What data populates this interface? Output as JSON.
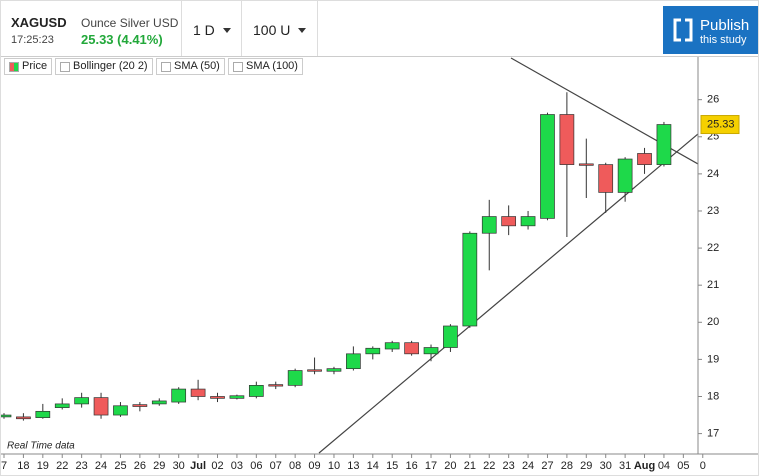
{
  "toolbar": {
    "symbol": "XAGUSD",
    "description": "Ounce Silver USD",
    "time": "17:25:23",
    "price_change": "25.33 (4.41%)",
    "interval": "1 D",
    "range": "100 U",
    "publish": "Publish",
    "publish_sub": "this study"
  },
  "footer": "Real Time data",
  "chart_data": {
    "type": "candlestick",
    "legend": [
      "Price",
      "Bollinger (20 2)",
      "SMA (50)",
      "SMA (100)"
    ],
    "up_color": "#1ed94a",
    "down_color": "#ef5b5b",
    "categories": [
      "7",
      "18",
      "19",
      "22",
      "23",
      "24",
      "25",
      "26",
      "29",
      "30",
      "Jul",
      "02",
      "03",
      "06",
      "07",
      "08",
      "09",
      "10",
      "13",
      "14",
      "15",
      "16",
      "17",
      "20",
      "21",
      "22",
      "23",
      "24",
      "27",
      "28",
      "29",
      "30",
      "31",
      "Aug",
      "04",
      "05",
      "0"
    ],
    "open": [
      17.45,
      17.45,
      17.43,
      17.7,
      17.8,
      17.97,
      17.5,
      17.78,
      17.8,
      17.85,
      18.2,
      18.0,
      17.95,
      18.0,
      18.32,
      18.3,
      18.72,
      18.68,
      18.75,
      19.15,
      19.28,
      19.45,
      19.15,
      19.32,
      19.9,
      22.4,
      22.85,
      22.6,
      22.8,
      25.6,
      24.27,
      24.25,
      23.5,
      24.55,
      24.25,
      null,
      null
    ],
    "high": [
      17.55,
      17.55,
      17.8,
      17.95,
      18.1,
      18.1,
      17.85,
      17.85,
      17.95,
      18.25,
      18.45,
      18.1,
      18.05,
      18.4,
      18.4,
      18.75,
      19.05,
      18.8,
      19.35,
      19.35,
      19.5,
      19.5,
      19.4,
      19.95,
      22.45,
      23.3,
      23.15,
      23.0,
      25.65,
      26.2,
      24.95,
      24.3,
      24.45,
      24.7,
      25.4,
      null,
      null
    ],
    "low": [
      17.4,
      17.35,
      17.4,
      17.65,
      17.7,
      17.4,
      17.45,
      17.6,
      17.75,
      17.8,
      17.9,
      17.85,
      17.92,
      17.95,
      18.2,
      18.25,
      18.6,
      18.6,
      18.7,
      19.0,
      19.2,
      19.1,
      18.95,
      19.2,
      19.85,
      21.4,
      22.35,
      22.5,
      22.75,
      22.3,
      23.35,
      22.95,
      23.25,
      24.0,
      24.2,
      null,
      null
    ],
    "close": [
      17.5,
      17.4,
      17.6,
      17.8,
      17.97,
      17.5,
      17.75,
      17.73,
      17.88,
      18.2,
      18.0,
      17.95,
      18.02,
      18.3,
      18.28,
      18.7,
      18.68,
      18.75,
      19.15,
      19.3,
      19.45,
      19.15,
      19.32,
      19.9,
      22.4,
      22.85,
      22.6,
      22.85,
      25.6,
      24.25,
      24.23,
      23.5,
      24.4,
      24.25,
      25.33,
      null,
      null
    ],
    "last_price_color": "#f5d000",
    "ylim": [
      16.45,
      27.15
    ],
    "yticks": [
      17,
      18,
      19,
      20,
      21,
      22,
      23,
      24,
      25,
      26
    ]
  }
}
